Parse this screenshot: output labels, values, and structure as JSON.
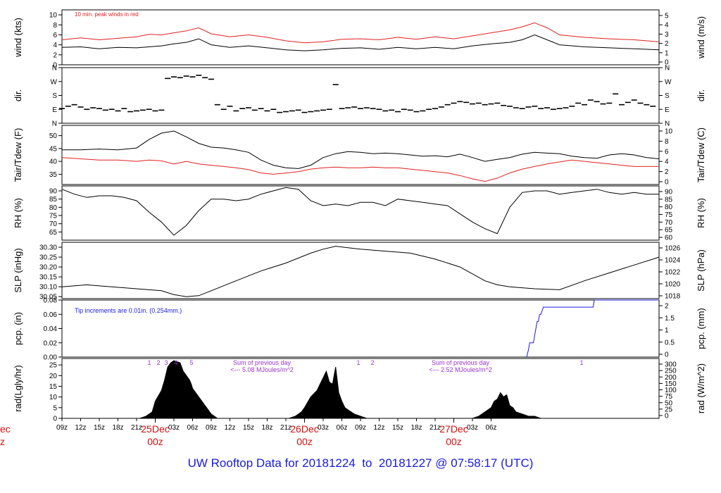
{
  "footer": {
    "prefix": "UW Rooftop Data for",
    "start": "20181224",
    "to": "to",
    "end": "20181227",
    "at": "@ 07:58:17",
    "tz": "(UTC)"
  },
  "chart_data": [
    {
      "id": "wind",
      "type": "line",
      "ylabel": "wind (kts)",
      "ylabel_right": "wind (m/s)",
      "ylim": [
        0,
        11
      ],
      "yticks": [
        0,
        2,
        4,
        6,
        8,
        10
      ],
      "right_ticks": [
        0,
        1,
        2,
        3,
        4,
        5
      ],
      "annotation": "10 min. peak winds in red",
      "annotation_color": "#e02020",
      "series": [
        {
          "color": "#000000",
          "x": [
            0,
            3,
            6,
            9,
            12,
            14,
            16,
            18,
            20,
            22,
            24,
            27,
            30,
            33,
            36,
            39,
            42,
            45,
            48,
            51,
            54,
            57,
            60,
            63,
            66,
            69,
            72,
            74,
            76,
            78,
            80,
            84,
            88,
            92,
            96
          ],
          "y": [
            3.5,
            3.6,
            3.2,
            3.5,
            3.4,
            3.6,
            3.8,
            4.2,
            4.5,
            5.2,
            4.0,
            3.5,
            3.8,
            3.4,
            3.0,
            2.8,
            3.0,
            3.3,
            3.4,
            3.1,
            3.5,
            3.2,
            3.5,
            3.2,
            3.8,
            4.2,
            4.5,
            5.0,
            6.0,
            5.0,
            4.0,
            3.6,
            3.4,
            3.2,
            3.0
          ]
        },
        {
          "color": "#e02020",
          "x": [
            0,
            3,
            6,
            9,
            12,
            14,
            16,
            18,
            20,
            22,
            24,
            27,
            30,
            33,
            36,
            39,
            42,
            45,
            48,
            51,
            54,
            57,
            60,
            63,
            66,
            69,
            72,
            74,
            76,
            78,
            80,
            84,
            88,
            92,
            96
          ],
          "y": [
            5.0,
            5.4,
            5.0,
            5.3,
            5.6,
            6.1,
            6.0,
            6.4,
            6.8,
            7.4,
            6.2,
            5.6,
            6.0,
            5.5,
            4.8,
            4.4,
            4.6,
            5.1,
            5.2,
            5.0,
            5.5,
            5.1,
            5.6,
            5.2,
            5.8,
            6.4,
            7.0,
            7.6,
            8.4,
            7.4,
            6.0,
            5.5,
            5.2,
            5.0,
            4.6
          ]
        }
      ]
    },
    {
      "id": "dir",
      "type": "scatter",
      "ylabel": "dir.",
      "ylabel_right": "dir.",
      "ylim": [
        0,
        360
      ],
      "yticks": [
        0,
        90,
        180,
        270,
        360
      ],
      "tick_labels": [
        "N",
        "E",
        "S",
        "W",
        "N"
      ],
      "x": [
        0,
        1,
        2,
        3,
        4,
        5,
        6,
        7,
        8,
        9,
        10,
        11,
        12,
        13,
        14,
        15,
        16,
        17,
        18,
        19,
        20,
        21,
        22,
        23,
        24,
        25,
        26,
        27,
        28,
        29,
        30,
        31,
        32,
        33,
        34,
        35,
        36,
        37,
        38,
        39,
        40,
        41,
        42,
        43,
        44,
        45,
        46,
        47,
        48,
        49,
        50,
        51,
        52,
        53,
        54,
        55,
        56,
        57,
        58,
        59,
        60,
        61,
        62,
        63,
        64,
        65,
        66,
        67,
        68,
        69,
        70,
        71,
        72,
        73,
        74,
        75,
        76,
        77,
        78,
        79,
        80,
        81,
        82,
        83,
        84,
        85,
        86,
        87,
        88,
        89,
        90,
        91,
        92,
        93,
        94,
        95
      ],
      "y": [
        95,
        110,
        120,
        105,
        90,
        100,
        95,
        85,
        90,
        80,
        95,
        75,
        80,
        85,
        90,
        80,
        85,
        290,
        300,
        295,
        305,
        300,
        310,
        295,
        285,
        120,
        90,
        110,
        80,
        95,
        100,
        85,
        95,
        80,
        90,
        70,
        75,
        80,
        85,
        70,
        75,
        80,
        85,
        90,
        250,
        95,
        100,
        105,
        95,
        100,
        95,
        90,
        80,
        85,
        75,
        90,
        85,
        75,
        80,
        90,
        95,
        105,
        120,
        130,
        140,
        135,
        125,
        130,
        120,
        125,
        130,
        115,
        110,
        100,
        95,
        105,
        110,
        95,
        100,
        90,
        95,
        100,
        110,
        130,
        120,
        150,
        140,
        125,
        130,
        190,
        120,
        135,
        150,
        130,
        120,
        110
      ]
    },
    {
      "id": "temp",
      "type": "line",
      "ylabel": "Tair/Tdew (F)",
      "ylabel_right": "Tair/Tdew (C)",
      "ylim": [
        31,
        54
      ],
      "yticks": [
        35,
        40,
        45,
        50
      ],
      "right_ticks": [
        0,
        2,
        4,
        6,
        8,
        10
      ],
      "series": [
        {
          "name": "Tair",
          "color": "#000000",
          "x": [
            0,
            3,
            6,
            9,
            12,
            14,
            16,
            18,
            20,
            22,
            24,
            26,
            28,
            30,
            32,
            34,
            36,
            38,
            40,
            42,
            44,
            46,
            48,
            50,
            52,
            54,
            56,
            58,
            60,
            62,
            64,
            66,
            68,
            70,
            72,
            74,
            76,
            78,
            80,
            82,
            84,
            86,
            88,
            90,
            92,
            94,
            96
          ],
          "y": [
            44.5,
            44.5,
            44.8,
            44.5,
            45.2,
            48.5,
            51.0,
            51.8,
            49.5,
            47.0,
            45.5,
            45.2,
            44.5,
            43.5,
            40.5,
            38.5,
            37.5,
            37.2,
            38.5,
            41.5,
            43.0,
            43.8,
            43.5,
            43.0,
            43.2,
            43.0,
            42.5,
            42.0,
            42.2,
            41.8,
            42.8,
            41.5,
            40.0,
            40.8,
            41.5,
            42.8,
            43.5,
            43.2,
            43.0,
            42.0,
            41.5,
            41.2,
            42.5,
            43.0,
            42.5,
            41.5,
            41.0
          ]
        },
        {
          "name": "Tdew",
          "color": "#e02020",
          "x": [
            0,
            3,
            6,
            9,
            12,
            14,
            16,
            18,
            20,
            22,
            24,
            26,
            28,
            30,
            32,
            34,
            36,
            38,
            40,
            42,
            44,
            46,
            48,
            50,
            52,
            54,
            56,
            58,
            60,
            62,
            64,
            66,
            68,
            70,
            72,
            74,
            76,
            78,
            80,
            82,
            84,
            86,
            88,
            90,
            92,
            94,
            96
          ],
          "y": [
            41.5,
            41.0,
            40.5,
            40.5,
            40.0,
            40.5,
            40.2,
            39.0,
            40.0,
            39.0,
            38.5,
            38.0,
            37.5,
            36.8,
            35.5,
            35.0,
            35.5,
            36.0,
            37.0,
            37.5,
            37.8,
            37.5,
            37.5,
            37.8,
            37.5,
            37.5,
            37.0,
            36.5,
            36.0,
            35.5,
            34.5,
            33.2,
            32.2,
            33.5,
            35.5,
            37.0,
            38.0,
            39.0,
            39.8,
            40.5,
            40.0,
            39.5,
            39.0,
            38.5,
            38.0,
            38.0,
            38.0
          ]
        }
      ]
    },
    {
      "id": "rh",
      "type": "line",
      "ylabel": "RH (%)",
      "ylabel_right": "RH (%)",
      "ylim": [
        60,
        93
      ],
      "yticks": [
        65,
        70,
        75,
        80,
        85,
        90
      ],
      "right_ticks": [
        60,
        65,
        70,
        75,
        80,
        85,
        90
      ],
      "series": [
        {
          "color": "#000000",
          "x": [
            0,
            2,
            4,
            6,
            8,
            10,
            12,
            14,
            16,
            18,
            20,
            22,
            24,
            26,
            28,
            30,
            32,
            34,
            36,
            38,
            40,
            42,
            44,
            46,
            48,
            50,
            52,
            54,
            56,
            58,
            60,
            62,
            64,
            66,
            68,
            70,
            72,
            74,
            76,
            78,
            80,
            82,
            84,
            86,
            88,
            90,
            92,
            94,
            96
          ],
          "y": [
            91,
            88,
            86,
            87,
            87,
            86,
            84,
            77,
            71,
            63,
            69,
            78,
            85,
            85,
            84,
            85,
            88,
            90,
            92,
            91,
            84,
            81,
            82,
            81,
            83,
            83,
            81,
            85,
            84,
            83,
            82,
            81,
            76,
            71,
            67,
            64,
            80,
            89,
            90,
            90,
            88,
            89,
            90,
            91,
            89,
            88,
            89,
            88,
            88
          ]
        }
      ]
    },
    {
      "id": "slp",
      "type": "line",
      "ylabel": "SLP (inHg)",
      "ylabel_right": "SLP (hPa)",
      "ylim": [
        30.04,
        30.325
      ],
      "yticks": [
        30.05,
        30.1,
        30.15,
        30.2,
        30.25,
        30.3
      ],
      "right_ticks": [
        1018,
        1020,
        1022,
        1024,
        1026
      ],
      "series": [
        {
          "color": "#000000",
          "x": [
            0,
            4,
            8,
            12,
            16,
            18,
            20,
            22,
            24,
            28,
            32,
            36,
            40,
            42,
            44,
            48,
            52,
            56,
            60,
            64,
            68,
            70,
            72,
            76,
            80,
            84,
            88,
            92,
            96
          ],
          "y": [
            30.1,
            30.11,
            30.1,
            30.09,
            30.08,
            30.06,
            30.05,
            30.055,
            30.08,
            30.13,
            30.18,
            30.22,
            30.27,
            30.29,
            30.305,
            30.29,
            30.28,
            30.27,
            30.24,
            30.2,
            30.13,
            30.11,
            30.1,
            30.09,
            30.085,
            30.13,
            30.17,
            30.21,
            30.25
          ]
        }
      ]
    },
    {
      "id": "pcp",
      "type": "line",
      "ylabel": "pcp. (in)",
      "ylabel_right": "pcp. (mm)",
      "ylim": [
        0,
        0.08
      ],
      "yticks": [
        0.0,
        0.02,
        0.04,
        0.06,
        0.08
      ],
      "right_ticks": [
        0,
        0.5,
        1,
        1.5,
        2
      ],
      "annotation": "Tip increments are 0.01in. (0.254mm.)",
      "annotation_color": "#1a1adc",
      "series": [
        {
          "color": "#1a1adc",
          "x": [
            74.7,
            75.0,
            75.2,
            75.8,
            76.0,
            76.2,
            76.4,
            76.6,
            76.8,
            77.0,
            77.4,
            77.6,
            77.8,
            78.0,
            78.2,
            78.4,
            80.0,
            83.0,
            85.4,
            85.6,
            89.0,
            96.0
          ],
          "y": [
            0.0,
            0.01,
            0.02,
            0.02,
            0.03,
            0.04,
            0.05,
            0.05,
            0.06,
            0.06,
            0.07,
            0.07,
            0.07,
            0.07,
            0.07,
            0.07,
            0.07,
            0.07,
            0.07,
            0.08,
            0.08,
            0.08
          ]
        }
      ]
    },
    {
      "id": "rad",
      "type": "area",
      "ylabel": "rad(Lgly/hr)",
      "ylabel_right": "rad (W/m^2)",
      "ylim": [
        0,
        28
      ],
      "yticks": [
        0,
        5,
        10,
        15,
        20,
        25
      ],
      "right_ticks": [
        0,
        25,
        50,
        75,
        100,
        150,
        200,
        250,
        300
      ],
      "series": [
        {
          "color": "#000000",
          "x": [
            12.5,
            13.5,
            14.5,
            15,
            16,
            16.5,
            17,
            17.5,
            18,
            19,
            19.5,
            20,
            20.5,
            20.8,
            21,
            22,
            23,
            24,
            25,
            36.5,
            37.5,
            38.5,
            39,
            40,
            41,
            41.5,
            42,
            42.5,
            43,
            43.5,
            44,
            44.5,
            45,
            45.5,
            46,
            47,
            48,
            49,
            50,
            66,
            67,
            68,
            69,
            69.5,
            70,
            70.5,
            71,
            71.5,
            72,
            72.5,
            73,
            74,
            75,
            76,
            77,
            78
          ],
          "y": [
            0,
            1,
            3,
            8,
            13,
            18,
            24,
            26,
            27,
            26,
            22,
            20,
            18,
            16,
            14,
            10,
            6,
            2,
            0,
            0,
            1,
            3,
            5,
            10,
            13,
            16,
            19,
            22,
            17,
            16,
            24,
            12,
            8,
            5,
            4,
            2,
            1,
            0,
            0,
            0,
            1,
            3,
            5,
            8,
            9,
            12,
            10,
            11,
            6,
            5,
            3,
            2,
            1,
            1,
            0,
            0
          ]
        }
      ],
      "tick_marks": [
        "1",
        "2",
        "3",
        "4",
        "5"
      ],
      "day_markers": [
        "1",
        "2",
        "1"
      ],
      "annotations": [
        {
          "line1": "Sum of previous day",
          "line2": "<--- 5.08 MJoules/m^2"
        },
        {
          "line1": "Sum of previous day",
          "line2": "<--- 2.52 MJoules/m^2"
        }
      ],
      "annotation_color": "#9933cc"
    }
  ],
  "xaxis": {
    "hours": [
      "09z",
      "12z",
      "15z",
      "18z",
      "21z",
      "03z",
      "06z",
      "09z",
      "12z",
      "15z",
      "18z",
      "21z",
      "03z",
      "06z",
      "09z",
      "12z",
      "15z",
      "18z",
      "21z",
      "03z",
      "06z"
    ],
    "hour_positions": [
      0,
      3,
      6,
      9,
      12,
      18,
      21,
      24,
      27,
      30,
      33,
      36,
      42,
      45,
      48,
      51,
      54,
      57,
      60,
      66,
      69
    ],
    "days": [
      {
        "label": "25Dec",
        "sub": "00z"
      },
      {
        "label": "26Dec",
        "sub": "00z"
      },
      {
        "label": "27Dec",
        "sub": "00z"
      }
    ],
    "edge_label": "ec",
    "edge_sub": "z"
  }
}
